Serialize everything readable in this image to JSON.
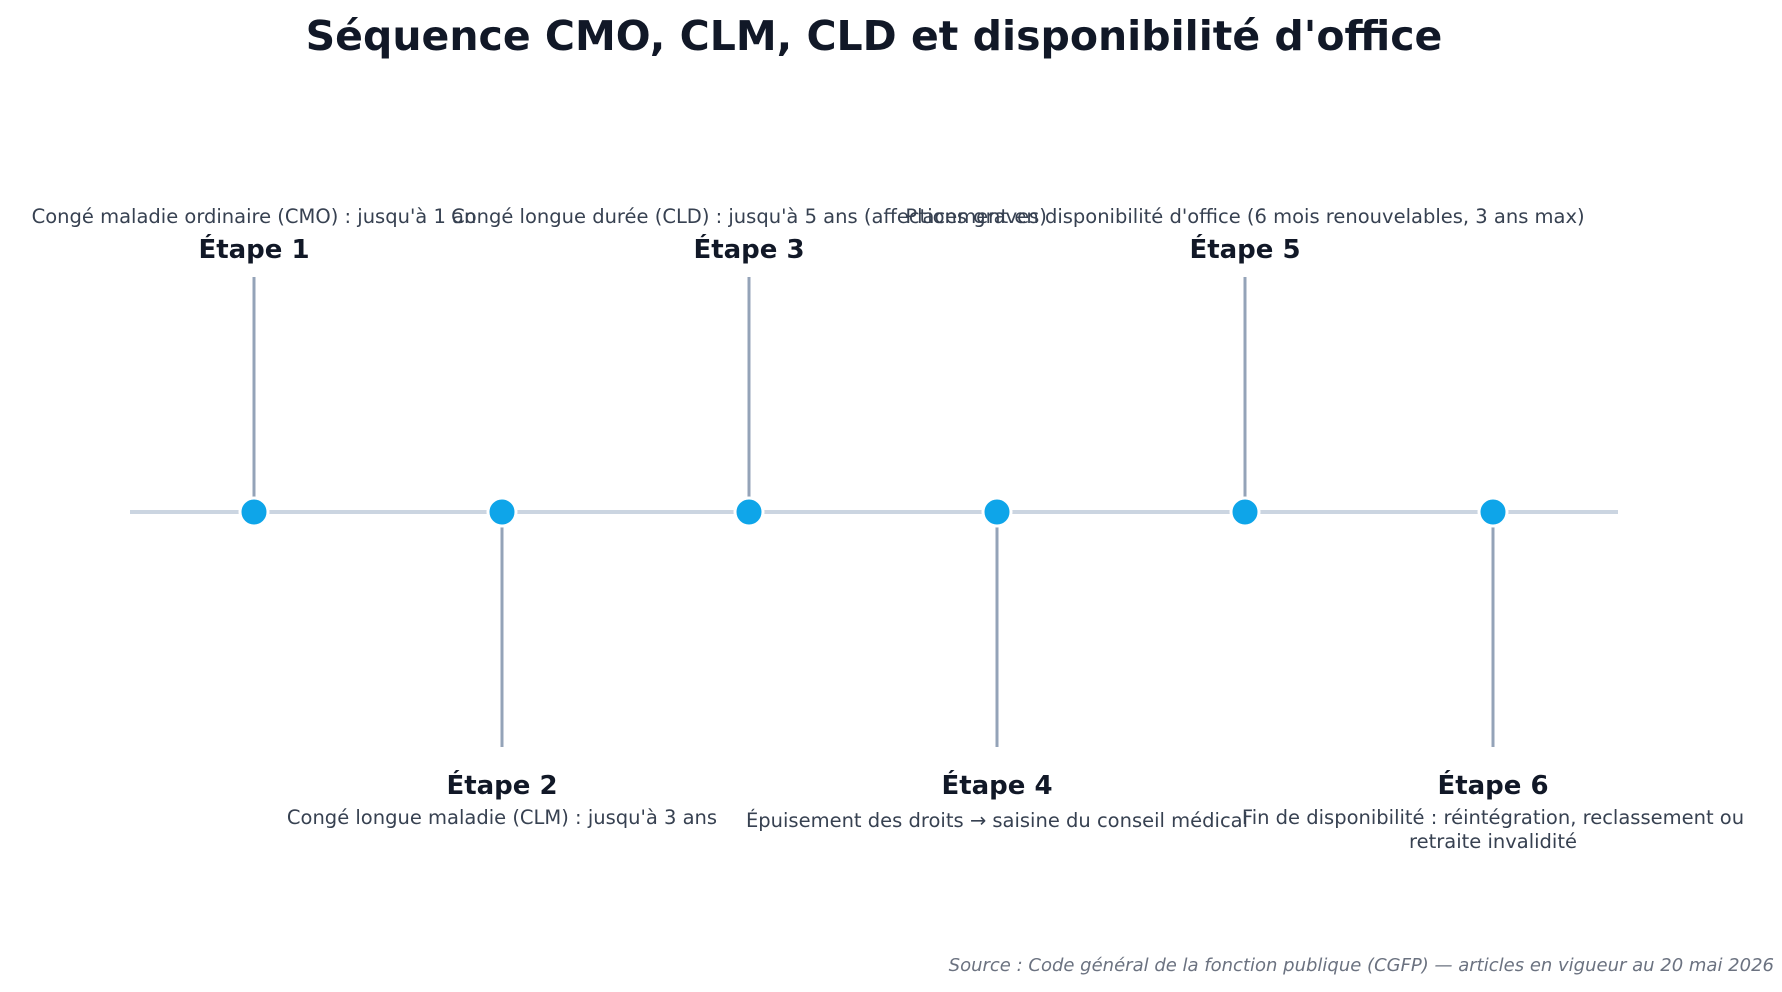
{
  "title": "Séquence CMO, CLM, CLD et disponibilité d'office",
  "colors": {
    "marker": "#0ea5e9",
    "marker_stroke": "#ffffff",
    "axis_line": "#cbd5e1",
    "stem_line": "#94a3b8",
    "title_text": "#111827",
    "desc_text": "#374151",
    "source_text": "#6b7280"
  },
  "steps": [
    {
      "label": "Étape 1",
      "description": "Congé maladie ordinaire (CMO) : jusqu'à 1 an",
      "side": "above"
    },
    {
      "label": "Étape 2",
      "description": "Congé longue maladie (CLM) : jusqu'à 3 ans",
      "side": "below"
    },
    {
      "label": "Étape 3",
      "description": "Congé longue durée (CLD) : jusqu'à 5 ans (affections graves)",
      "side": "above"
    },
    {
      "label": "Étape 4",
      "description": "Épuisement des droits → saisine du conseil médical",
      "side": "below"
    },
    {
      "label": "Étape 5",
      "description": "Placement en disponibilité d'office (6 mois renouvelables, 3 ans max)",
      "side": "above"
    },
    {
      "label": "Étape 6",
      "description": "Fin de disponibilité : réintégration, reclassement ou retraite invalidité",
      "side": "below"
    }
  ],
  "source": "Source : Code général de la fonction publique (CGFP) — articles en vigueur au 20 mai 2026"
}
